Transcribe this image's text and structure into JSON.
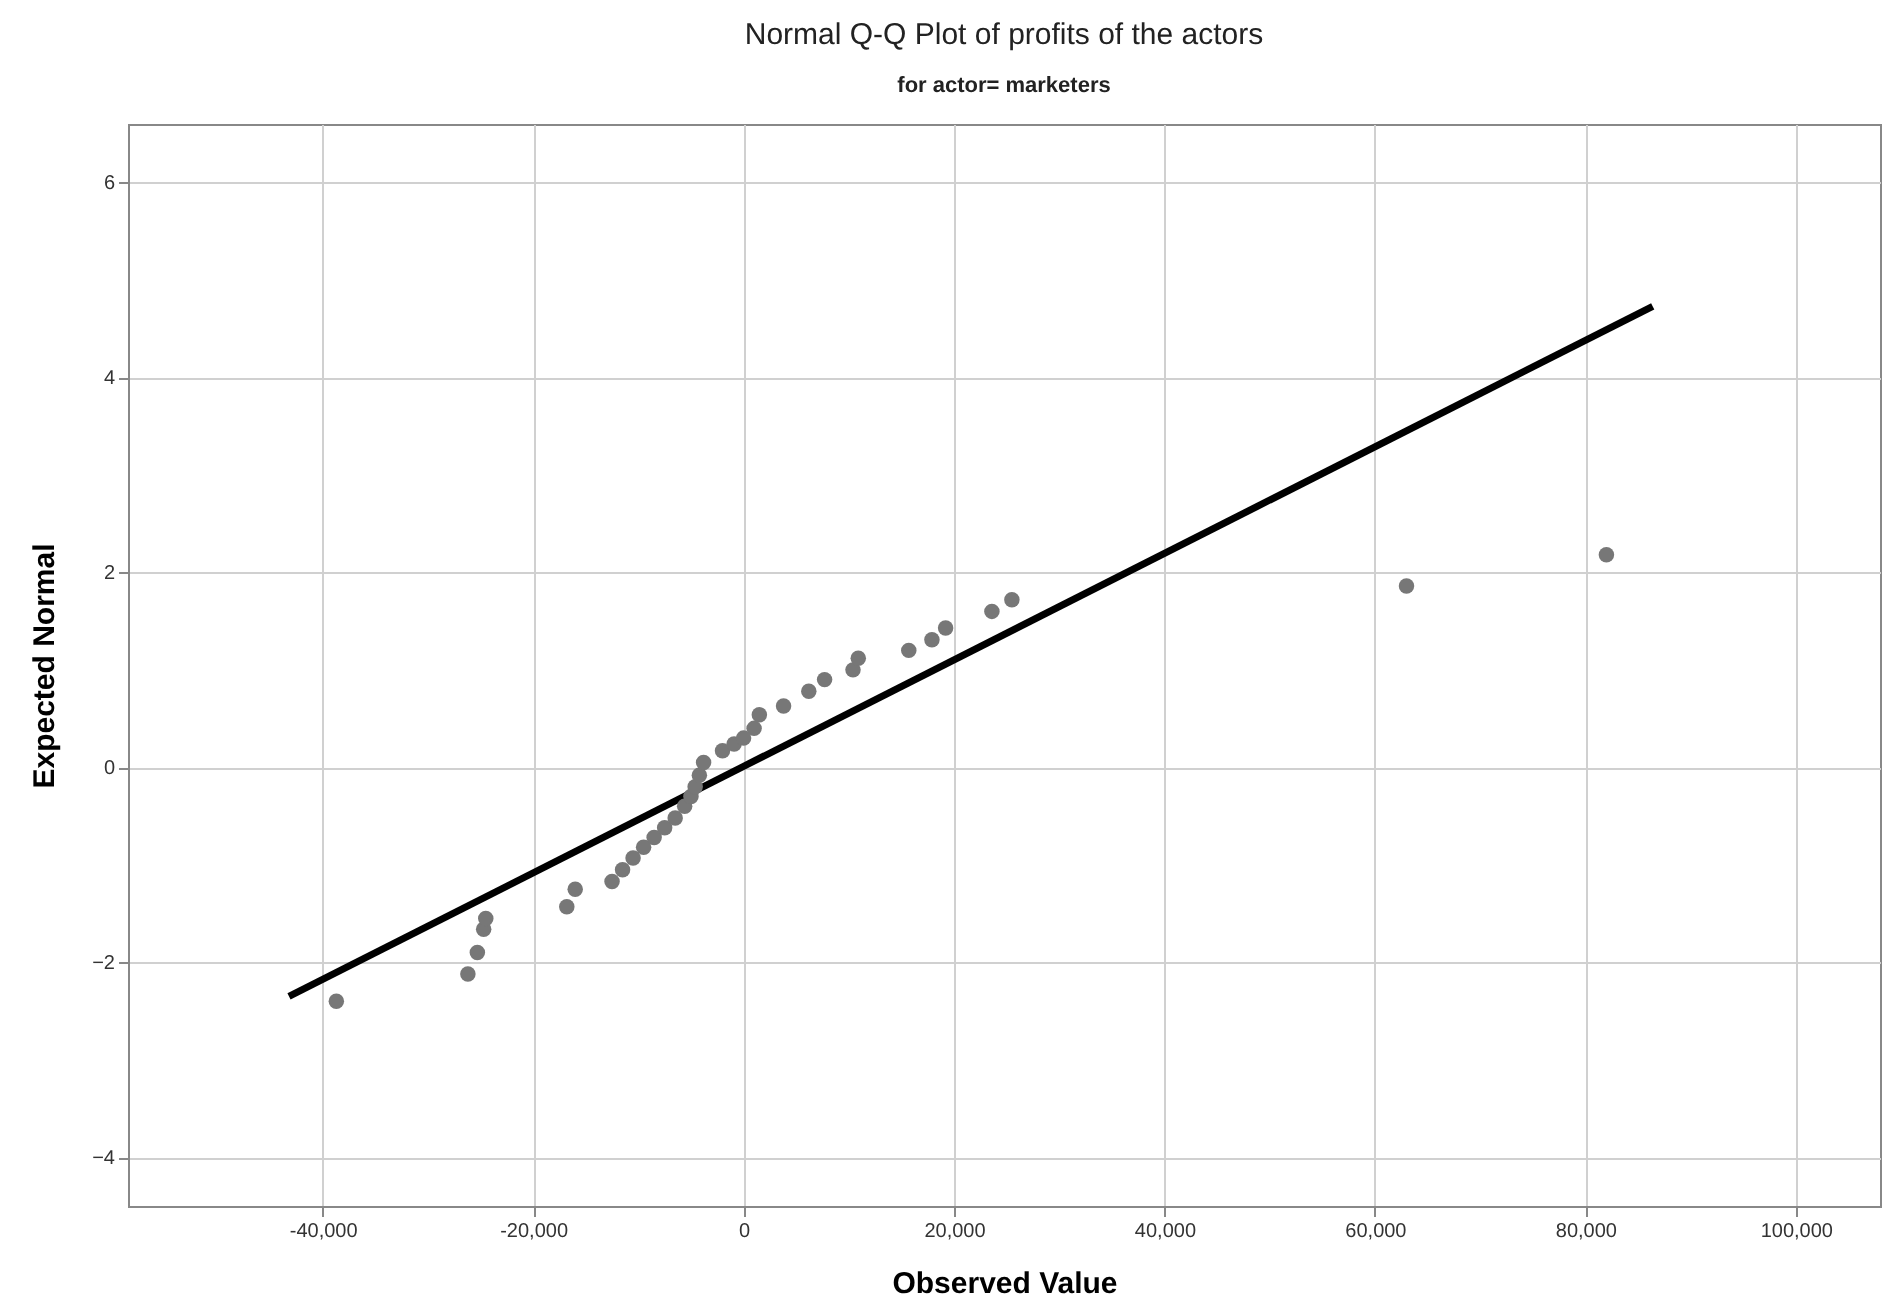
{
  "chart_data": {
    "type": "scatter",
    "title": "Normal Q-Q Plot of profits of the actors",
    "subtitle": "for actor= marketers",
    "xlabel": "Observed Value",
    "ylabel": "Expected Normal",
    "xlim": [
      -58500,
      108000
    ],
    "ylim": [
      -4.5,
      6.6
    ],
    "xticks": [
      {
        "value": -40000,
        "label": "-40,000"
      },
      {
        "value": -20000,
        "label": "-20,000"
      },
      0,
      {
        "value": 20000,
        "label": "20,000"
      },
      {
        "value": 40000,
        "label": "40,000"
      },
      {
        "value": 60000,
        "label": "60,000"
      },
      {
        "value": 80000,
        "label": "80,000"
      },
      {
        "value": 100000,
        "label": "100,000"
      }
    ],
    "yticks": [
      -4,
      -2,
      0,
      2,
      4,
      6
    ],
    "grid": true,
    "series": [
      {
        "marker": "circle",
        "color": "#777777",
        "x": [
          -38700,
          -26200,
          -25300,
          -24700,
          -24500,
          -16800,
          -16000,
          -12500,
          -11500,
          -10500,
          -9500,
          -8500,
          -7500,
          -6500,
          -5600,
          -5000,
          -4600,
          -4200,
          -3800,
          -2000,
          -900,
          0,
          1000,
          1500,
          3800,
          6200,
          7700,
          10400,
          10900,
          15700,
          17900,
          19200,
          23600,
          25500,
          63000,
          82000
        ],
        "values": [
          -2.4,
          -2.12,
          -1.9,
          -1.66,
          -1.55,
          -1.43,
          -1.25,
          -1.17,
          -1.05,
          -0.93,
          -0.82,
          -0.72,
          -0.62,
          -0.52,
          -0.4,
          -0.3,
          -0.2,
          -0.08,
          0.05,
          0.17,
          0.24,
          0.3,
          0.4,
          0.54,
          0.63,
          0.78,
          0.9,
          1.0,
          1.12,
          1.2,
          1.31,
          1.43,
          1.6,
          1.72,
          1.86,
          2.18
        ]
      },
      {
        "type": "line",
        "color": "#000000",
        "x": [
          -43200,
          86400
        ],
        "values": [
          -2.35,
          4.73
        ]
      }
    ]
  }
}
